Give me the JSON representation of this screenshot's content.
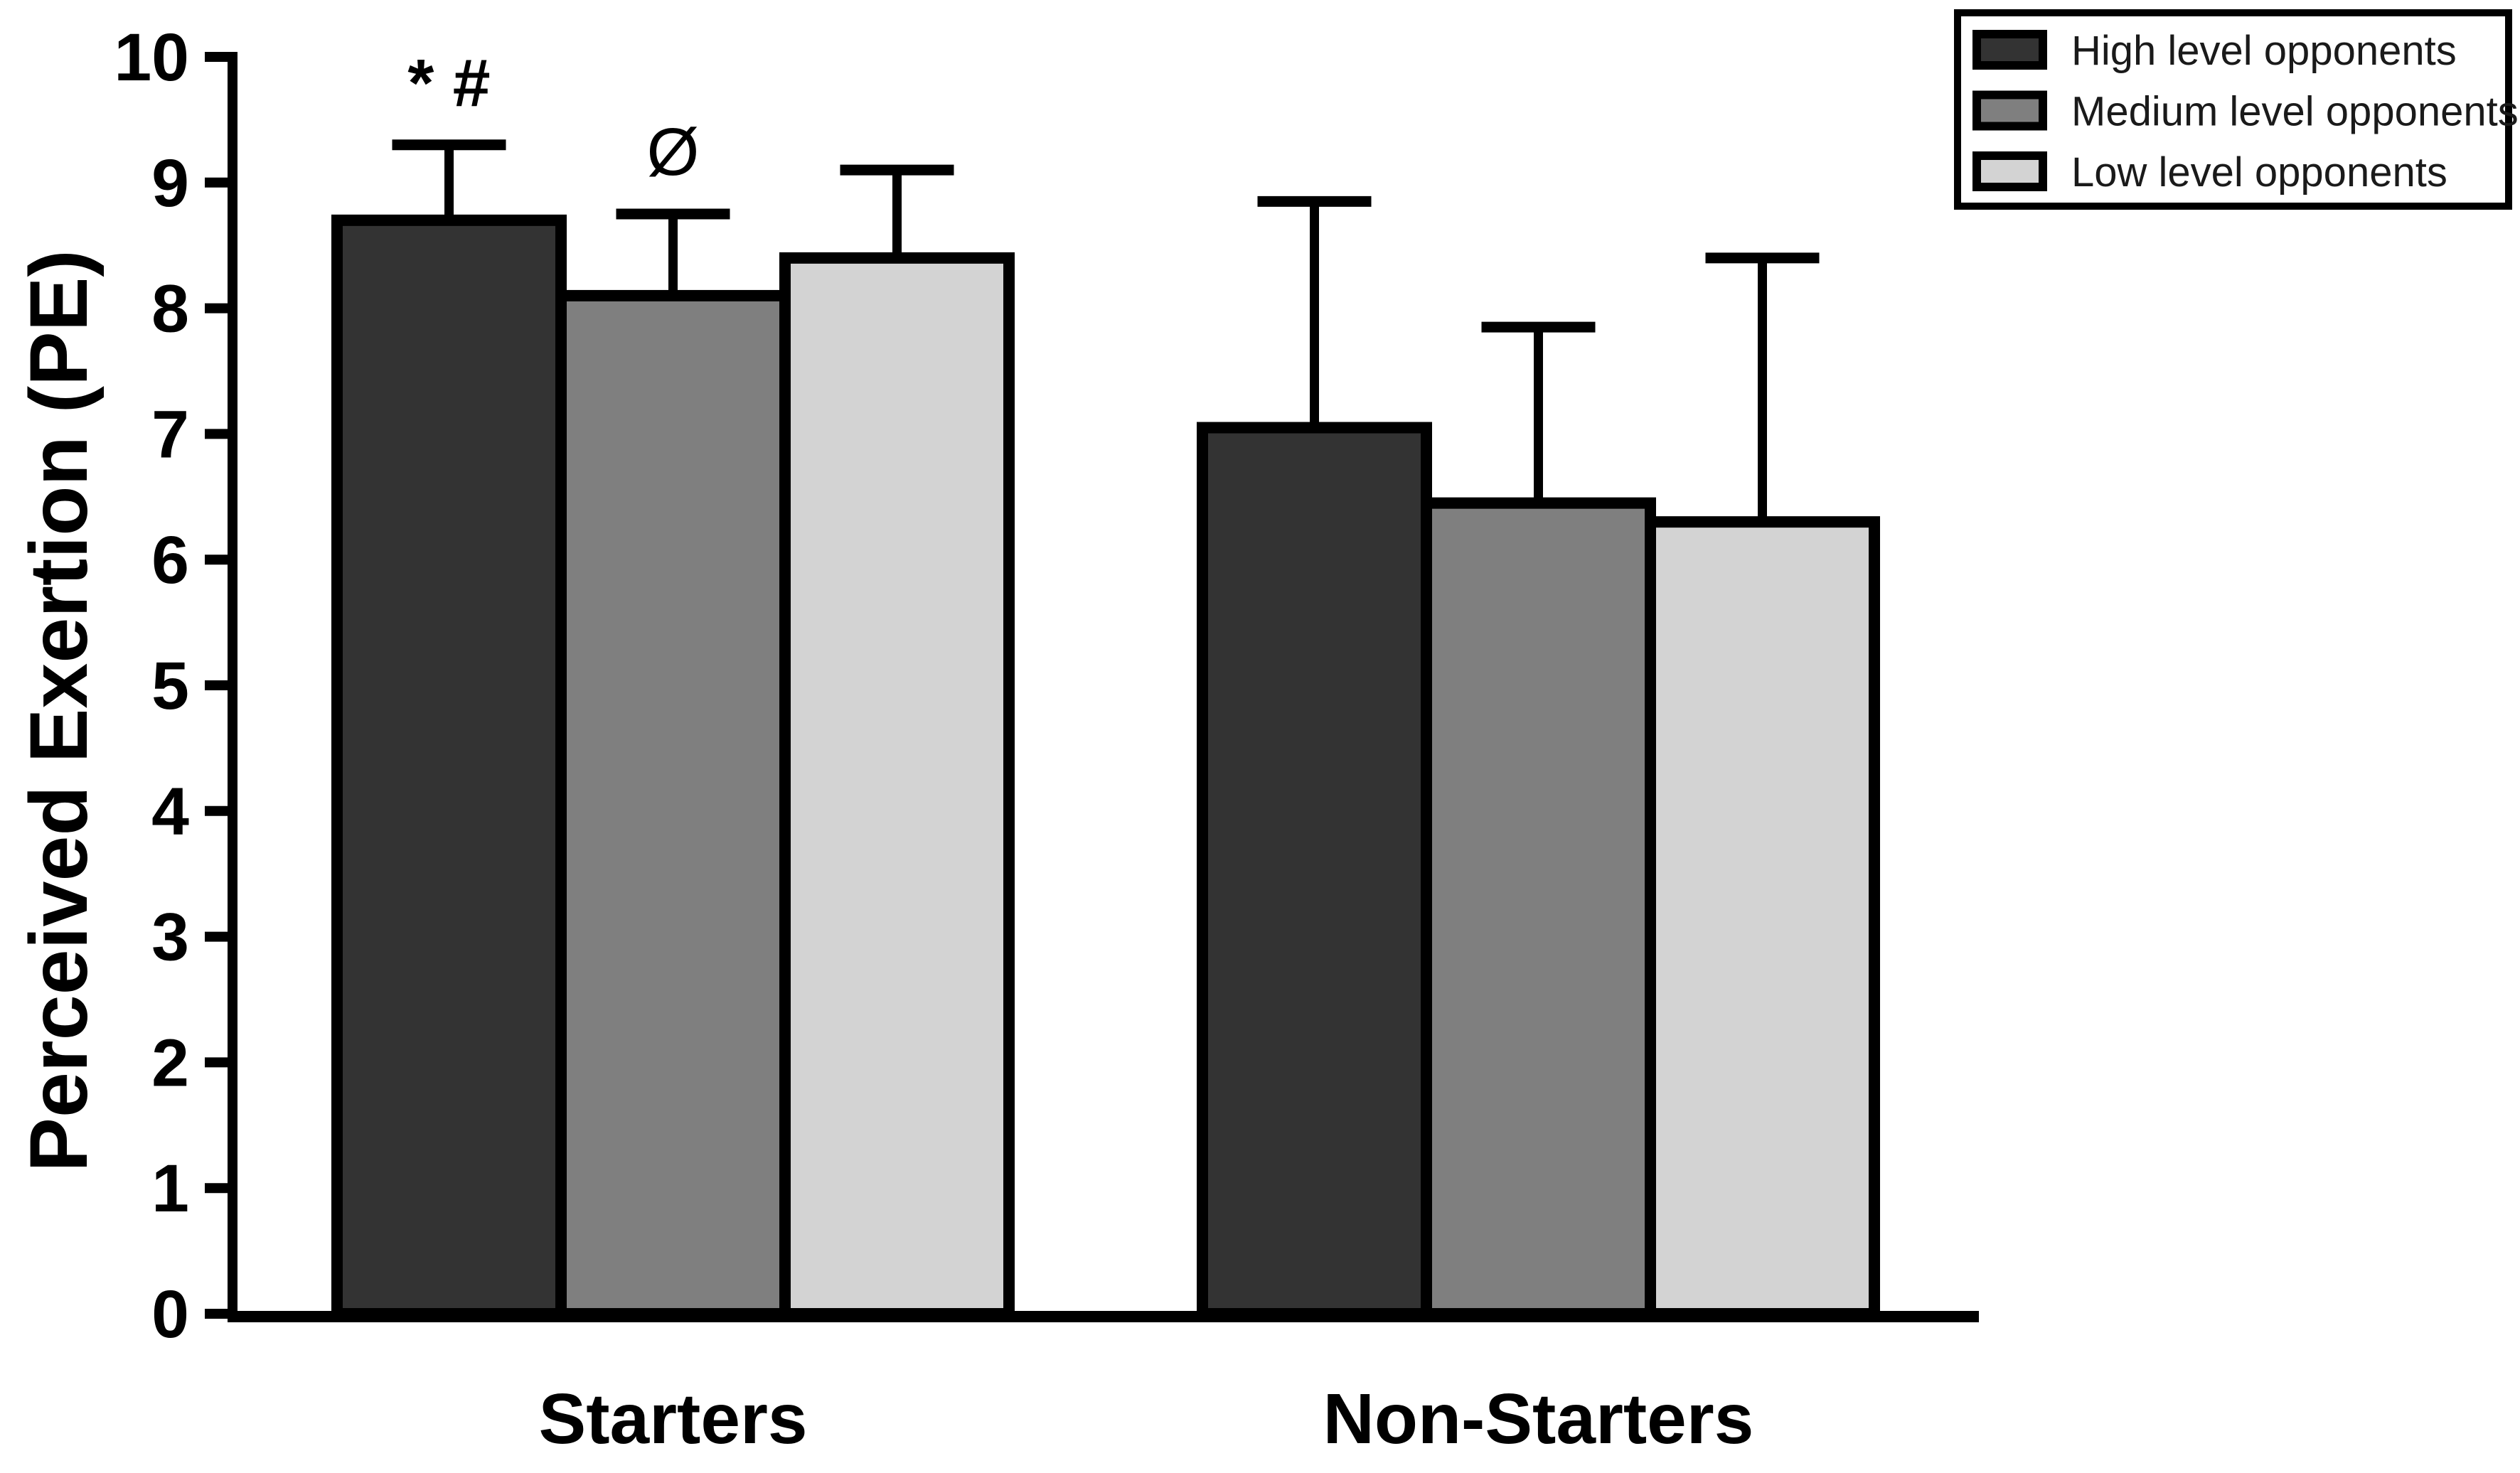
{
  "chart_data": {
    "type": "bar",
    "title": "",
    "xlabel": "",
    "ylabel": "Perceived Exertion (PE)",
    "ylim": [
      0,
      10
    ],
    "yticks": [
      0,
      1,
      2,
      3,
      4,
      5,
      6,
      7,
      8,
      9,
      10
    ],
    "grid": false,
    "legend_position": "top-right",
    "categories": [
      "Starters",
      "Non-Starters"
    ],
    "series": [
      {
        "name": "High level opponents",
        "color": "#333333",
        "values": [
          8.7,
          7.05
        ],
        "errors_plus": [
          0.6,
          1.8
        ]
      },
      {
        "name": "Medium level opponents",
        "color": "#7f7f7f",
        "values": [
          8.1,
          6.45
        ],
        "errors_plus": [
          0.65,
          1.4
        ]
      },
      {
        "name": "Low level opponents",
        "color": "#d3d3d3",
        "values": [
          8.4,
          6.3
        ],
        "errors_plus": [
          0.7,
          2.1
        ]
      }
    ],
    "annotations": [
      {
        "text": "* #",
        "category": "Starters",
        "series": "High level opponents"
      },
      {
        "text": "Ø",
        "category": "Starters",
        "series": "Medium level opponents"
      }
    ],
    "colors": {
      "axis": "#000000",
      "bar_outline": "#000000",
      "error_bar": "#000000",
      "text": "#000000",
      "legend_border": "#000000",
      "legend_text": "#1a1a1a",
      "background": "#ffffff"
    }
  }
}
